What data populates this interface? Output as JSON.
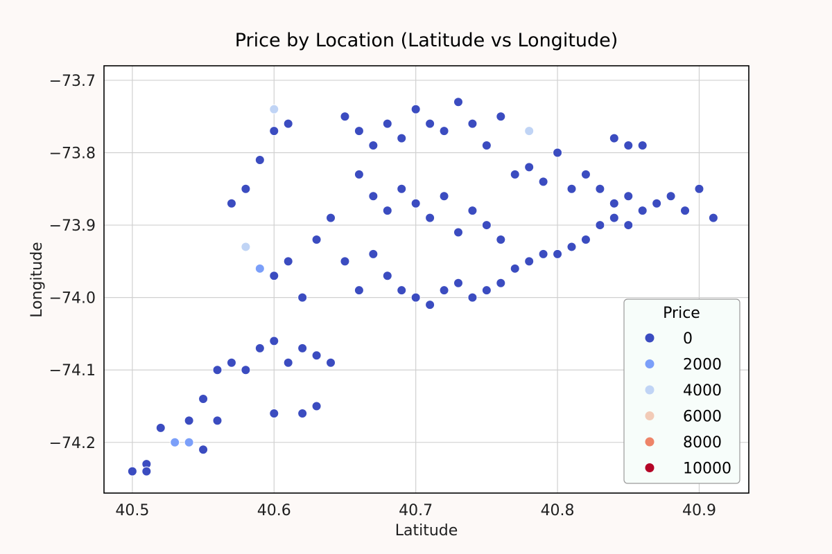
{
  "chart_data": {
    "type": "scatter",
    "title": "Price by Location (Latitude vs Longitude)",
    "xlabel": "Latitude",
    "ylabel": "Longitude",
    "xlim": [
      40.48,
      40.935
    ],
    "ylim": [
      -74.27,
      -73.68
    ],
    "xticks": [
      "40.5",
      "40.6",
      "40.7",
      "40.8",
      "40.9"
    ],
    "yticks": [
      "−73.7",
      "−73.8",
      "−73.9",
      "−74.0",
      "−74.1",
      "−74.2"
    ],
    "grid": true,
    "legend": {
      "title": "Price",
      "placement": "lower-right",
      "entries": [
        {
          "label": "0",
          "color": "#3b4cc0"
        },
        {
          "label": "2000",
          "color": "#7b9ff9"
        },
        {
          "label": "4000",
          "color": "#c0d4f5"
        },
        {
          "label": "6000",
          "color": "#f2cbb7"
        },
        {
          "label": "8000",
          "color": "#ee8468"
        },
        {
          "label": "10000",
          "color": "#b40426"
        }
      ]
    },
    "colormap": "coolwarm",
    "series": [
      {
        "hue_value": 0,
        "color": "#3b4cc0",
        "points": [
          [
            40.5,
            -74.24
          ],
          [
            40.51,
            -74.23
          ],
          [
            40.51,
            -74.24
          ],
          [
            40.52,
            -74.18
          ],
          [
            40.53,
            -74.2
          ],
          [
            40.54,
            -74.17
          ],
          [
            40.55,
            -74.14
          ],
          [
            40.55,
            -74.21
          ],
          [
            40.56,
            -74.1
          ],
          [
            40.56,
            -74.17
          ],
          [
            40.57,
            -74.09
          ],
          [
            40.58,
            -74.1
          ],
          [
            40.59,
            -74.07
          ],
          [
            40.6,
            -74.06
          ],
          [
            40.61,
            -74.09
          ],
          [
            40.62,
            -74.07
          ],
          [
            40.63,
            -74.08
          ],
          [
            40.64,
            -74.09
          ],
          [
            40.6,
            -74.16
          ],
          [
            40.62,
            -74.16
          ],
          [
            40.63,
            -74.15
          ],
          [
            40.57,
            -73.87
          ],
          [
            40.58,
            -73.85
          ],
          [
            40.59,
            -73.81
          ],
          [
            40.6,
            -73.77
          ],
          [
            40.61,
            -73.76
          ],
          [
            40.59,
            -73.96
          ],
          [
            40.6,
            -73.97
          ],
          [
            40.61,
            -73.95
          ],
          [
            40.62,
            -74.0
          ],
          [
            40.63,
            -73.92
          ],
          [
            40.64,
            -73.89
          ],
          [
            40.65,
            -73.95
          ],
          [
            40.66,
            -73.99
          ],
          [
            40.67,
            -73.94
          ],
          [
            40.68,
            -73.97
          ],
          [
            40.69,
            -73.99
          ],
          [
            40.7,
            -74.0
          ],
          [
            40.71,
            -74.01
          ],
          [
            40.72,
            -73.99
          ],
          [
            40.73,
            -73.98
          ],
          [
            40.74,
            -74.0
          ],
          [
            40.75,
            -73.99
          ],
          [
            40.76,
            -73.98
          ],
          [
            40.77,
            -73.96
          ],
          [
            40.78,
            -73.95
          ],
          [
            40.79,
            -73.94
          ],
          [
            40.8,
            -73.94
          ],
          [
            40.81,
            -73.93
          ],
          [
            40.82,
            -73.92
          ],
          [
            40.83,
            -73.9
          ],
          [
            40.84,
            -73.89
          ],
          [
            40.85,
            -73.9
          ],
          [
            40.86,
            -73.88
          ],
          [
            40.87,
            -73.87
          ],
          [
            40.88,
            -73.86
          ],
          [
            40.89,
            -73.88
          ],
          [
            40.9,
            -73.85
          ],
          [
            40.91,
            -73.89
          ],
          [
            40.65,
            -73.75
          ],
          [
            40.66,
            -73.77
          ],
          [
            40.67,
            -73.79
          ],
          [
            40.68,
            -73.76
          ],
          [
            40.69,
            -73.78
          ],
          [
            40.7,
            -73.74
          ],
          [
            40.71,
            -73.76
          ],
          [
            40.72,
            -73.77
          ],
          [
            40.73,
            -73.73
          ],
          [
            40.74,
            -73.76
          ],
          [
            40.75,
            -73.79
          ],
          [
            40.76,
            -73.75
          ],
          [
            40.77,
            -73.83
          ],
          [
            40.78,
            -73.82
          ],
          [
            40.79,
            -73.84
          ],
          [
            40.8,
            -73.8
          ],
          [
            40.81,
            -73.85
          ],
          [
            40.82,
            -73.83
          ],
          [
            40.83,
            -73.85
          ],
          [
            40.84,
            -73.87
          ],
          [
            40.85,
            -73.86
          ],
          [
            40.84,
            -73.78
          ],
          [
            40.85,
            -73.79
          ],
          [
            40.86,
            -73.79
          ],
          [
            40.66,
            -73.83
          ],
          [
            40.67,
            -73.86
          ],
          [
            40.68,
            -73.88
          ],
          [
            40.69,
            -73.85
          ],
          [
            40.7,
            -73.87
          ],
          [
            40.71,
            -73.89
          ],
          [
            40.72,
            -73.86
          ],
          [
            40.73,
            -73.91
          ],
          [
            40.74,
            -73.88
          ],
          [
            40.75,
            -73.9
          ],
          [
            40.76,
            -73.92
          ]
        ]
      },
      {
        "hue_value": 2000,
        "color": "#7b9ff9",
        "points": [
          [
            40.53,
            -74.2
          ],
          [
            40.54,
            -74.2
          ],
          [
            40.59,
            -73.96
          ]
        ]
      },
      {
        "hue_value": 4000,
        "color": "#c0d4f5",
        "points": [
          [
            40.78,
            -73.77
          ],
          [
            40.6,
            -73.74
          ],
          [
            40.58,
            -73.93
          ]
        ]
      }
    ]
  }
}
